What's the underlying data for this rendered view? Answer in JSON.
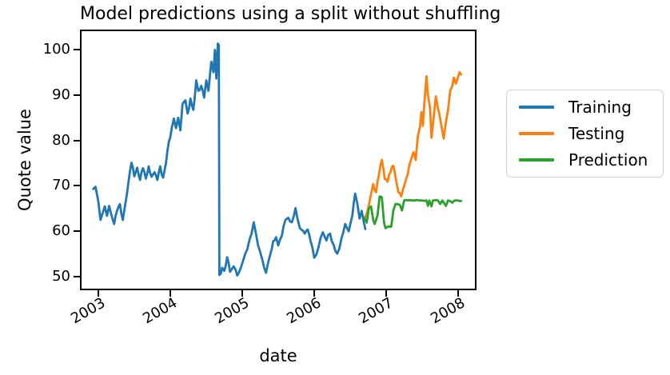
{
  "chart_data": {
    "type": "line",
    "title": "Model predictions using a split without shuffling",
    "xlabel": "date",
    "ylabel": "Quote value",
    "xlim": [
      2002.74,
      2008.26
    ],
    "ylim": [
      47.0,
      104.4
    ],
    "grid": false,
    "legend_position": "outside-right",
    "x_ticks": [
      {
        "value": 2003,
        "label": "2003"
      },
      {
        "value": 2004,
        "label": "2004"
      },
      {
        "value": 2005,
        "label": "2005"
      },
      {
        "value": 2006,
        "label": "2006"
      },
      {
        "value": 2007,
        "label": "2007"
      },
      {
        "value": 2008,
        "label": "2008"
      }
    ],
    "y_ticks": [
      {
        "value": 50,
        "label": "50"
      },
      {
        "value": 60,
        "label": "60"
      },
      {
        "value": 70,
        "label": "70"
      },
      {
        "value": 80,
        "label": "80"
      },
      {
        "value": 90,
        "label": "90"
      },
      {
        "value": 100,
        "label": "100"
      }
    ],
    "series": [
      {
        "name": "Training",
        "color": "#1f77b4",
        "points": [
          [
            2002.93,
            69.3
          ],
          [
            2002.96,
            69.8
          ],
          [
            2003.0,
            66.5
          ],
          [
            2003.03,
            62.5
          ],
          [
            2003.06,
            64.0
          ],
          [
            2003.09,
            65.5
          ],
          [
            2003.12,
            63.4
          ],
          [
            2003.15,
            65.6
          ],
          [
            2003.18,
            63.7
          ],
          [
            2003.22,
            61.6
          ],
          [
            2003.26,
            64.5
          ],
          [
            2003.3,
            66.0
          ],
          [
            2003.34,
            62.5
          ],
          [
            2003.38,
            66.5
          ],
          [
            2003.42,
            71.0
          ],
          [
            2003.46,
            75.1
          ],
          [
            2003.5,
            72.1
          ],
          [
            2003.54,
            74.0
          ],
          [
            2003.58,
            71.3
          ],
          [
            2003.62,
            73.9
          ],
          [
            2003.66,
            71.6
          ],
          [
            2003.7,
            74.3
          ],
          [
            2003.74,
            72.0
          ],
          [
            2003.78,
            73.0
          ],
          [
            2003.82,
            71.3
          ],
          [
            2003.86,
            74.3
          ],
          [
            2003.9,
            71.8
          ],
          [
            2003.94,
            75.0
          ],
          [
            2003.98,
            79.7
          ],
          [
            2004.02,
            82.7
          ],
          [
            2004.05,
            84.8
          ],
          [
            2004.08,
            82.7
          ],
          [
            2004.11,
            85.0
          ],
          [
            2004.14,
            82.2
          ],
          [
            2004.17,
            88.0
          ],
          [
            2004.21,
            88.8
          ],
          [
            2004.24,
            85.9
          ],
          [
            2004.28,
            89.2
          ],
          [
            2004.32,
            86.7
          ],
          [
            2004.36,
            93.2
          ],
          [
            2004.39,
            90.9
          ],
          [
            2004.43,
            92.0
          ],
          [
            2004.47,
            89.4
          ],
          [
            2004.5,
            93.2
          ],
          [
            2004.53,
            90.9
          ],
          [
            2004.57,
            97.3
          ],
          [
            2004.6,
            95.0
          ],
          [
            2004.62,
            99.9
          ],
          [
            2004.64,
            93.6
          ],
          [
            2004.66,
            101.3
          ],
          [
            2004.675,
            101.0
          ],
          [
            2004.682,
            50.4
          ],
          [
            2004.72,
            52.0
          ],
          [
            2004.75,
            51.3
          ],
          [
            2004.79,
            54.3
          ],
          [
            2004.83,
            51.1
          ],
          [
            2004.88,
            52.3
          ],
          [
            2004.93,
            50.3
          ],
          [
            2004.98,
            52.0
          ],
          [
            2005.04,
            55.0
          ],
          [
            2005.1,
            58.1
          ],
          [
            2005.16,
            62.0
          ],
          [
            2005.22,
            56.9
          ],
          [
            2005.28,
            53.7
          ],
          [
            2005.33,
            50.9
          ],
          [
            2005.39,
            55.0
          ],
          [
            2005.43,
            57.8
          ],
          [
            2005.47,
            58.7
          ],
          [
            2005.5,
            56.9
          ],
          [
            2005.55,
            59.0
          ],
          [
            2005.6,
            62.5
          ],
          [
            2005.64,
            63.0
          ],
          [
            2005.69,
            62.0
          ],
          [
            2005.74,
            65.1
          ],
          [
            2005.78,
            62.0
          ],
          [
            2005.82,
            60.4
          ],
          [
            2005.87,
            59.5
          ],
          [
            2005.91,
            60.4
          ],
          [
            2005.95,
            57.8
          ],
          [
            2006.0,
            54.2
          ],
          [
            2006.06,
            56.5
          ],
          [
            2006.12,
            59.8
          ],
          [
            2006.17,
            58.0
          ],
          [
            2006.22,
            59.5
          ],
          [
            2006.27,
            57.0
          ],
          [
            2006.32,
            55.1
          ],
          [
            2006.38,
            58.5
          ],
          [
            2006.43,
            61.6
          ],
          [
            2006.48,
            60.0
          ],
          [
            2006.53,
            63.5
          ],
          [
            2006.57,
            68.3
          ],
          [
            2006.6,
            66.0
          ],
          [
            2006.63,
            62.8
          ],
          [
            2006.66,
            64.5
          ],
          [
            2006.69,
            62.0
          ],
          [
            2006.71,
            60.5
          ]
        ]
      },
      {
        "name": "Testing",
        "color": "#ff7f0e",
        "points": [
          [
            2006.7,
            63.0
          ],
          [
            2006.74,
            64.5
          ],
          [
            2006.78,
            67.4
          ],
          [
            2006.82,
            70.4
          ],
          [
            2006.86,
            68.6
          ],
          [
            2006.9,
            72.5
          ],
          [
            2006.94,
            75.7
          ],
          [
            2006.98,
            71.5
          ],
          [
            2007.02,
            70.9
          ],
          [
            2007.06,
            73.0
          ],
          [
            2007.1,
            74.4
          ],
          [
            2007.14,
            71.0
          ],
          [
            2007.17,
            68.6
          ],
          [
            2007.21,
            67.7
          ],
          [
            2007.25,
            70.0
          ],
          [
            2007.28,
            71.6
          ],
          [
            2007.32,
            74.4
          ],
          [
            2007.35,
            76.0
          ],
          [
            2007.38,
            77.4
          ],
          [
            2007.41,
            75.7
          ],
          [
            2007.44,
            80.9
          ],
          [
            2007.47,
            83.0
          ],
          [
            2007.49,
            86.2
          ],
          [
            2007.51,
            83.2
          ],
          [
            2007.53,
            88.0
          ],
          [
            2007.56,
            94.1
          ],
          [
            2007.58,
            90.0
          ],
          [
            2007.61,
            87.1
          ],
          [
            2007.63,
            80.6
          ],
          [
            2007.66,
            85.0
          ],
          [
            2007.69,
            89.7
          ],
          [
            2007.72,
            87.0
          ],
          [
            2007.74,
            85.7
          ],
          [
            2007.77,
            83.0
          ],
          [
            2007.8,
            80.4
          ],
          [
            2007.83,
            84.0
          ],
          [
            2007.86,
            86.7
          ],
          [
            2007.89,
            90.9
          ],
          [
            2007.92,
            92.0
          ],
          [
            2007.94,
            93.8
          ],
          [
            2007.97,
            92.5
          ],
          [
            2008.0,
            94.0
          ],
          [
            2008.02,
            95.0
          ],
          [
            2008.04,
            94.5
          ]
        ]
      },
      {
        "name": "Prediction",
        "color": "#2ca02c",
        "points": [
          [
            2006.7,
            63.0
          ],
          [
            2006.73,
            61.9
          ],
          [
            2006.76,
            65.1
          ],
          [
            2006.79,
            65.5
          ],
          [
            2006.82,
            62.5
          ],
          [
            2006.84,
            61.6
          ],
          [
            2006.88,
            63.5
          ],
          [
            2006.91,
            67.7
          ],
          [
            2006.94,
            67.5
          ],
          [
            2006.97,
            62.0
          ],
          [
            2006.99,
            60.7
          ],
          [
            2007.03,
            61.1
          ],
          [
            2007.07,
            61.0
          ],
          [
            2007.1,
            64.6
          ],
          [
            2007.13,
            66.0
          ],
          [
            2007.16,
            66.0
          ],
          [
            2007.19,
            65.8
          ],
          [
            2007.22,
            64.6
          ],
          [
            2007.25,
            66.8
          ],
          [
            2007.28,
            66.9
          ],
          [
            2007.35,
            66.8
          ],
          [
            2007.42,
            66.9
          ],
          [
            2007.5,
            66.8
          ],
          [
            2007.56,
            66.8
          ],
          [
            2007.58,
            65.6
          ],
          [
            2007.6,
            66.8
          ],
          [
            2007.63,
            65.5
          ],
          [
            2007.65,
            66.8
          ],
          [
            2007.72,
            66.8
          ],
          [
            2007.75,
            66.0
          ],
          [
            2007.78,
            66.8
          ],
          [
            2007.83,
            65.6
          ],
          [
            2007.86,
            66.8
          ],
          [
            2007.92,
            66.3
          ],
          [
            2007.95,
            66.8
          ],
          [
            2008.0,
            66.8
          ],
          [
            2008.04,
            66.7
          ]
        ]
      }
    ]
  },
  "legend": {
    "items": [
      {
        "label": "Training",
        "color": "#1f77b4"
      },
      {
        "label": "Testing",
        "color": "#ff7f0e"
      },
      {
        "label": "Prediction",
        "color": "#2ca02c"
      }
    ]
  }
}
